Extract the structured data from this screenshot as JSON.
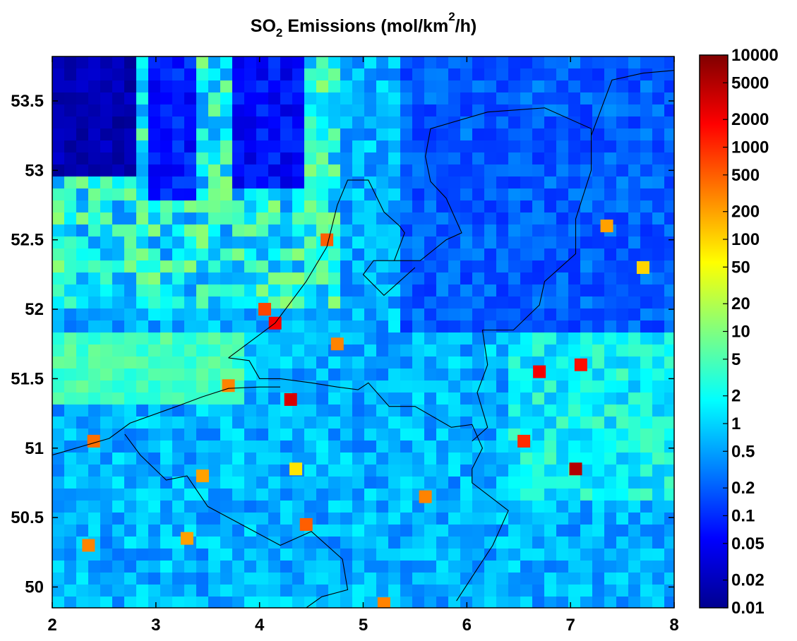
{
  "chart_data": {
    "type": "heatmap",
    "title": {
      "prefix": "SO",
      "subscript": "2",
      "middle": " Emissions (mol/km",
      "superscript": "2",
      "suffix": "/h)"
    },
    "xlabel": "",
    "ylabel": "",
    "x_range": [
      2,
      8
    ],
    "y_range": [
      49.85,
      53.82
    ],
    "x_ticks": [
      2,
      3,
      4,
      5,
      6,
      7,
      8
    ],
    "x_tick_labels": [
      "2",
      "3",
      "4",
      "5",
      "6",
      "7",
      "8"
    ],
    "y_ticks": [
      50,
      50.5,
      51,
      51.5,
      52,
      52.5,
      53,
      53.5
    ],
    "y_tick_labels": [
      "50",
      "50.5",
      "51",
      "51.5",
      "52",
      "52.5",
      "53",
      "53.5"
    ],
    "colormap": "jet",
    "color_scale": "log",
    "color_range": [
      0.01,
      10000
    ],
    "colorbar_ticks": [
      0.01,
      0.02,
      0.05,
      0.1,
      0.2,
      0.5,
      1,
      2,
      5,
      10,
      20,
      50,
      100,
      200,
      500,
      1000,
      2000,
      5000,
      10000
    ],
    "colorbar_tick_labels": [
      "0.01",
      "0.02",
      "0.05",
      "0.1",
      "0.2",
      "0.5",
      "1",
      "2",
      "5",
      "10",
      "20",
      "50",
      "100",
      "200",
      "500",
      "1000",
      "2000",
      "5000",
      "10000"
    ],
    "colorbar_position": "right",
    "grid": false,
    "boundary_lines": [
      [
        [
          2.0,
          50.95
        ],
        [
          2.55,
          51.07
        ],
        [
          2.75,
          51.18
        ],
        [
          3.2,
          51.3
        ],
        [
          3.45,
          51.37
        ],
        [
          3.7,
          51.43
        ],
        [
          4.0,
          51.44
        ],
        [
          4.2,
          51.44
        ]
      ],
      [
        [
          2.7,
          51.1
        ],
        [
          2.85,
          50.95
        ],
        [
          3.1,
          50.77
        ],
        [
          3.3,
          50.8
        ],
        [
          3.5,
          50.58
        ],
        [
          3.7,
          50.5
        ],
        [
          3.9,
          50.42
        ],
        [
          4.2,
          50.3
        ],
        [
          4.5,
          50.4
        ],
        [
          4.8,
          50.2
        ],
        [
          4.85,
          49.98
        ],
        [
          4.6,
          49.93
        ],
        [
          4.45,
          49.85
        ]
      ],
      [
        [
          3.7,
          51.65
        ],
        [
          3.9,
          51.63
        ],
        [
          4.0,
          51.5
        ],
        [
          4.2,
          51.5
        ],
        [
          4.5,
          51.47
        ],
        [
          4.75,
          51.44
        ],
        [
          4.95,
          51.42
        ],
        [
          5.05,
          51.47
        ],
        [
          5.25,
          51.3
        ],
        [
          5.5,
          51.3
        ],
        [
          5.85,
          51.15
        ],
        [
          6.05,
          51.17
        ],
        [
          6.15,
          51.0
        ],
        [
          6.05,
          50.85
        ],
        [
          6.05,
          50.75
        ],
        [
          6.4,
          50.55
        ],
        [
          6.25,
          50.3
        ],
        [
          6.1,
          50.13
        ],
        [
          5.9,
          49.9
        ]
      ],
      [
        [
          3.7,
          51.65
        ],
        [
          4.15,
          51.9
        ],
        [
          4.45,
          52.2
        ],
        [
          4.65,
          52.45
        ],
        [
          4.75,
          52.75
        ],
        [
          4.85,
          52.93
        ],
        [
          5.05,
          52.93
        ],
        [
          5.2,
          52.7
        ],
        [
          5.35,
          52.6
        ],
        [
          5.4,
          52.55
        ],
        [
          5.3,
          52.35
        ],
        [
          5.55,
          52.35
        ],
        [
          5.8,
          52.5
        ],
        [
          5.95,
          52.55
        ],
        [
          5.8,
          52.8
        ],
        [
          5.65,
          52.92
        ],
        [
          5.6,
          53.1
        ],
        [
          5.65,
          53.3
        ],
        [
          6.2,
          53.42
        ],
        [
          6.75,
          53.45
        ],
        [
          7.2,
          53.3
        ],
        [
          7.2,
          53.0
        ],
        [
          7.05,
          52.65
        ],
        [
          7.05,
          52.4
        ],
        [
          6.75,
          52.2
        ],
        [
          6.7,
          52.03
        ],
        [
          6.45,
          51.85
        ],
        [
          6.15,
          51.85
        ],
        [
          6.2,
          51.6
        ],
        [
          6.1,
          51.4
        ],
        [
          6.2,
          51.15
        ],
        [
          6.05,
          51.05
        ]
      ],
      [
        [
          7.2,
          53.25
        ],
        [
          7.4,
          53.65
        ],
        [
          7.7,
          53.7
        ],
        [
          8.0,
          53.72
        ]
      ],
      [
        [
          5.3,
          52.35
        ],
        [
          5.1,
          52.35
        ],
        [
          5.0,
          52.25
        ],
        [
          5.2,
          52.1
        ],
        [
          5.35,
          52.2
        ],
        [
          5.5,
          52.3
        ]
      ]
    ],
    "cell_values": [
      [
        {
          "x": 4.15,
          "y": 51.9,
          "v": 2000
        },
        {
          "x": 4.3,
          "y": 51.35,
          "v": 3000
        },
        {
          "x": 4.05,
          "y": 52.0,
          "v": 700
        },
        {
          "x": 3.7,
          "y": 51.45,
          "v": 300
        },
        {
          "x": 2.4,
          "y": 51.05,
          "v": 400
        },
        {
          "x": 2.35,
          "y": 50.3,
          "v": 300
        },
        {
          "x": 3.3,
          "y": 50.35,
          "v": 200
        },
        {
          "x": 3.45,
          "y": 50.8,
          "v": 200
        },
        {
          "x": 4.45,
          "y": 50.45,
          "v": 500
        },
        {
          "x": 4.35,
          "y": 50.85,
          "v": 80
        }
      ],
      [
        {
          "x": 6.7,
          "y": 51.55,
          "v": 2000
        },
        {
          "x": 6.55,
          "y": 51.05,
          "v": 1000
        },
        {
          "x": 7.05,
          "y": 50.85,
          "v": 5000
        },
        {
          "x": 7.1,
          "y": 51.6,
          "v": 1500
        },
        {
          "x": 4.75,
          "y": 51.75,
          "v": 300
        },
        {
          "x": 7.35,
          "y": 52.6,
          "v": 200
        },
        {
          "x": 7.7,
          "y": 52.3,
          "v": 100
        },
        {
          "x": 4.65,
          "y": 52.5,
          "v": 500
        },
        {
          "x": 5.6,
          "y": 50.65,
          "v": 300
        },
        {
          "x": 5.2,
          "y": 49.88,
          "v": 300
        }
      ]
    ]
  }
}
